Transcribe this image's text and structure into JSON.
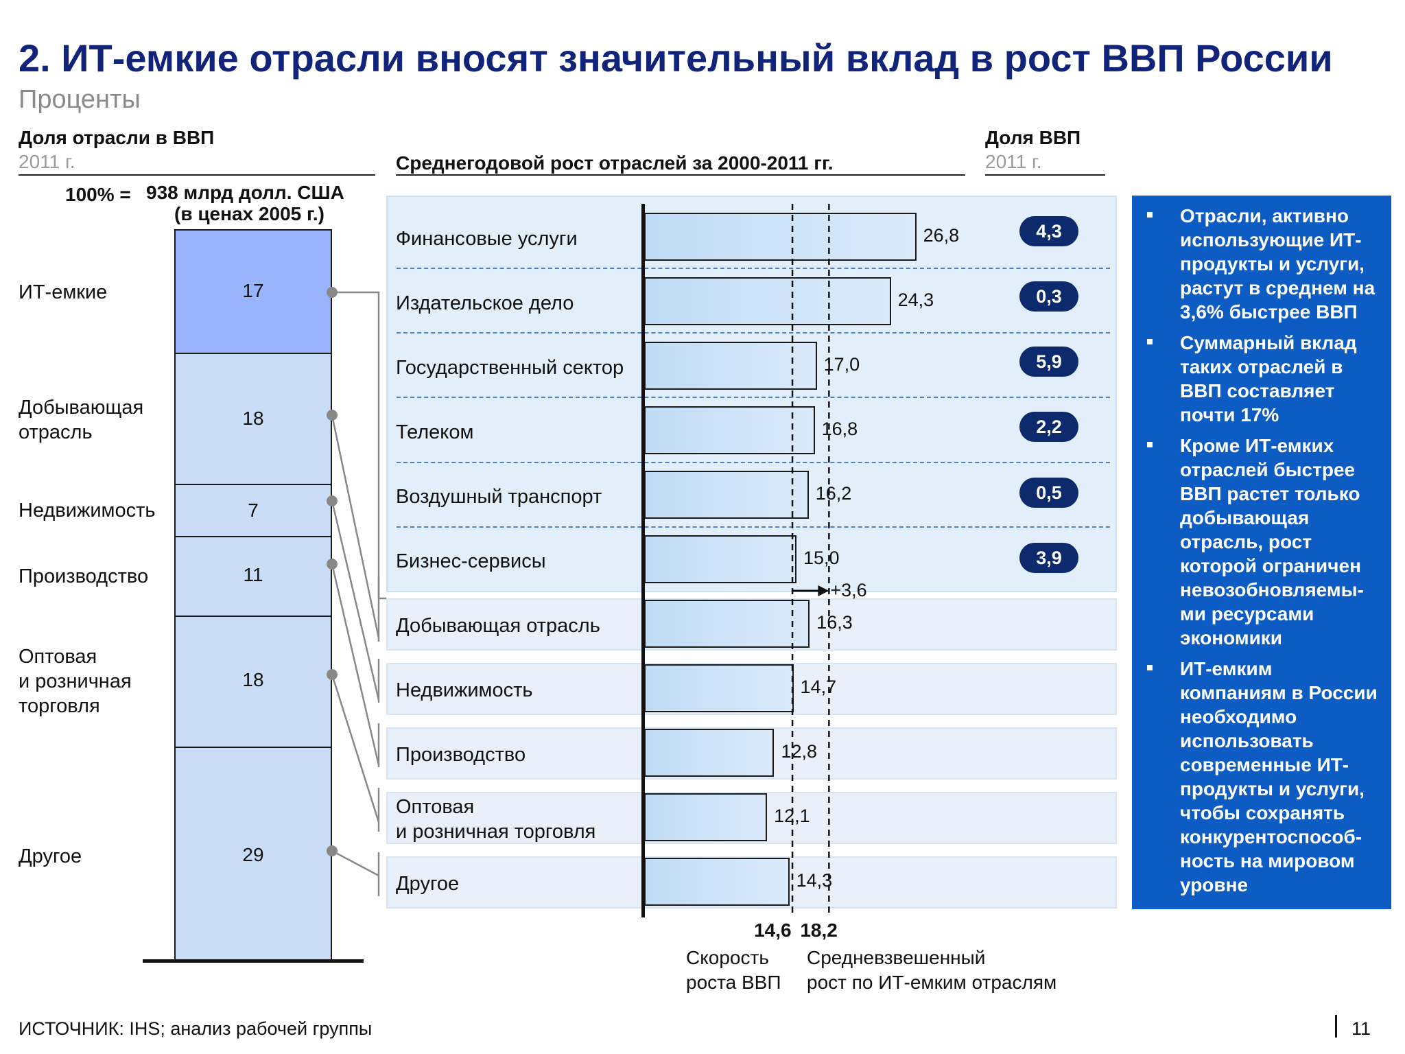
{
  "title": "2. ИТ-емкие отрасли вносят значительный вклад в рост ВВП России",
  "subtitle": "Проценты",
  "left_header": {
    "title": "Доля отрасли в ВВП",
    "year": "2011 г."
  },
  "total": {
    "prefix": "100% =",
    "value": "938 млрд долл. США",
    "note": "(в ценах 2005 г.)"
  },
  "middle_header": {
    "title": "Среднегодовой рост отраслей за 2000-2011 гг."
  },
  "right_header": {
    "title": "Доля ВВП",
    "year": "2011 г."
  },
  "stack": [
    {
      "label": "ИТ-емкие",
      "value": "17"
    },
    {
      "label": "Добывающая\nотрасль",
      "value": "18"
    },
    {
      "label": "Недвижимость",
      "value": "7"
    },
    {
      "label": "Производство",
      "value": "11"
    },
    {
      "label": "Оптовая\nи розничная\nторговля",
      "value": "18"
    },
    {
      "label": "Другое",
      "value": "29"
    }
  ],
  "chart_data": {
    "type": "bar",
    "orientation": "horizontal",
    "categories": [
      "Финансовые услуги",
      "Издательское дело",
      "Государственный сектор",
      "Телеком",
      "Воздушный транспорт",
      "Бизнес-сервисы",
      "Добывающая отрасль",
      "Недвижимость",
      "Производство",
      "Оптовая\nи розничная торговля",
      "Другое"
    ],
    "values": [
      26.8,
      24.3,
      17.0,
      16.8,
      16.2,
      15.0,
      16.3,
      14.7,
      12.8,
      12.1,
      14.3
    ],
    "value_labels": [
      "26,8",
      "24,3",
      "17,0",
      "16,8",
      "16,2",
      "15,0",
      "16,3",
      "14,7",
      "12,8",
      "12,1",
      "14,3"
    ],
    "gdp_share": [
      "4,3",
      "0,3",
      "5,9",
      "2,2",
      "0,5",
      "3,9"
    ],
    "reference_lines": [
      {
        "value": 14.6,
        "label_value": "14,6",
        "label": "Скорость\nроста ВВП"
      },
      {
        "value": 18.2,
        "label_value": "18,2",
        "label": "Средневзвешенный\nрост по ИТ-емким отраслям"
      }
    ],
    "annotation": "+3,6"
  },
  "bullets": [
    "Отрасли, активно использующие ИТ-продукты и услуги, растут в среднем на 3,6% быстрее ВВП",
    "Суммарный вклад таких отраслей в ВВП составляет почти 17%",
    "Кроме ИТ-емких отраслей быстрее ВВП растет только добывающая отрасль, рост которой ограничен невозобновляемы-ми ресурсами экономики",
    "ИТ-емким компаниям в России необходимо использовать современные ИТ-продукты и услуги, чтобы сохранять конкурентоспособ-ность на мировом уровне"
  ],
  "source": "ИСТОЧНИК: IHS; анализ рабочей группы",
  "page_number": "11",
  "colors": {
    "title": "#12247a",
    "panel": "#0c5cc4",
    "pill": "#0d2a6c",
    "it_segment": "#98b4fc",
    "segment": "#c9def6"
  }
}
